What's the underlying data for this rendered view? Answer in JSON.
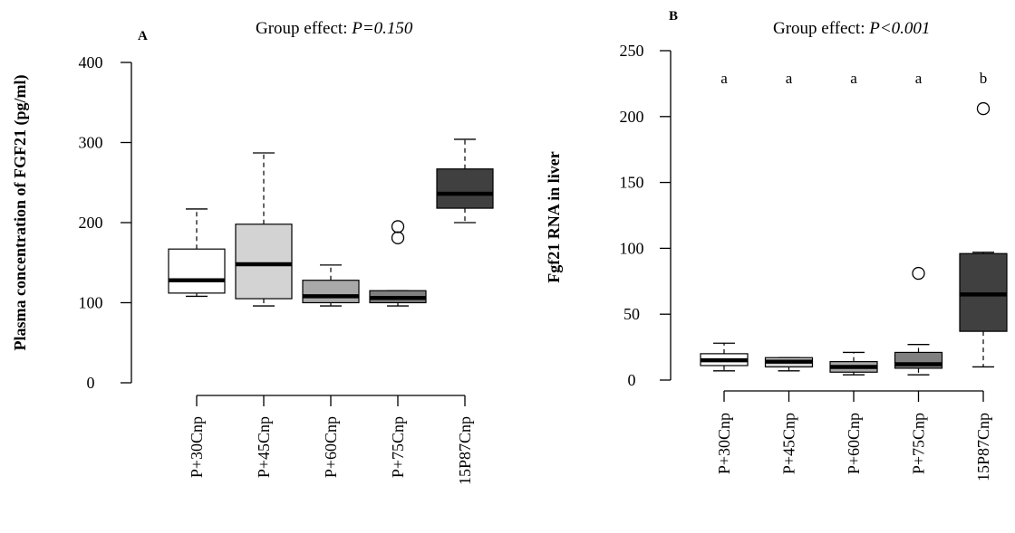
{
  "chart_data": [
    {
      "panel": "A",
      "type": "boxplot",
      "title_prefix": "Group effect: ",
      "title_p": "P=0.150",
      "ylabel": "Plasma concentration of FGF21 (pg/ml)",
      "xlabel": "",
      "ylim": [
        0,
        400
      ],
      "yticks": [
        0,
        100,
        200,
        300,
        400
      ],
      "grid": false,
      "categories": [
        "P+30Cnp",
        "P+45Cnp",
        "P+60Cnp",
        "P+75Cnp",
        "15P87Cnp"
      ],
      "fills": [
        "#ffffff",
        "#d3d3d3",
        "#a9a9a9",
        "#808080",
        "#404040"
      ],
      "boxes": [
        {
          "lower_whisker": 108,
          "q1": 112,
          "median": 128,
          "q3": 167,
          "upper_whisker": 217,
          "outliers": []
        },
        {
          "lower_whisker": 96,
          "q1": 105,
          "median": 148,
          "q3": 198,
          "upper_whisker": 287,
          "outliers": []
        },
        {
          "lower_whisker": 96,
          "q1": 100,
          "median": 108,
          "q3": 128,
          "upper_whisker": 147,
          "outliers": []
        },
        {
          "lower_whisker": 96,
          "q1": 100,
          "median": 106,
          "q3": 115,
          "upper_whisker": 115,
          "outliers": [
            181,
            195
          ]
        },
        {
          "lower_whisker": 200,
          "q1": 218,
          "median": 236,
          "q3": 267,
          "upper_whisker": 304,
          "outliers": []
        }
      ],
      "letters": []
    },
    {
      "panel": "B",
      "type": "boxplot",
      "title_prefix": "Group effect: ",
      "title_p": "P<0.001",
      "ylabel": "Fgf21 RNA in liver",
      "xlabel": "",
      "ylim": [
        0,
        250
      ],
      "yticks": [
        0,
        50,
        100,
        150,
        200,
        250
      ],
      "grid": false,
      "categories": [
        "P+30Cnp",
        "P+45Cnp",
        "P+60Cnp",
        "P+75Cnp",
        "15P87Cnp"
      ],
      "fills": [
        "#ffffff",
        "#d3d3d3",
        "#a9a9a9",
        "#808080",
        "#404040"
      ],
      "boxes": [
        {
          "lower_whisker": 7,
          "q1": 11,
          "median": 15,
          "q3": 20,
          "upper_whisker": 28,
          "outliers": []
        },
        {
          "lower_whisker": 7,
          "q1": 10,
          "median": 14,
          "q3": 17,
          "upper_whisker": 17,
          "outliers": []
        },
        {
          "lower_whisker": 4,
          "q1": 6,
          "median": 10,
          "q3": 14,
          "upper_whisker": 21,
          "outliers": []
        },
        {
          "lower_whisker": 4,
          "q1": 9,
          "median": 12,
          "q3": 21,
          "upper_whisker": 27,
          "outliers": [
            81
          ]
        },
        {
          "lower_whisker": 10,
          "q1": 37,
          "median": 65,
          "q3": 96,
          "upper_whisker": 97,
          "outliers": [
            206
          ]
        }
      ],
      "letters": [
        "a",
        "a",
        "a",
        "a",
        "b"
      ]
    }
  ]
}
